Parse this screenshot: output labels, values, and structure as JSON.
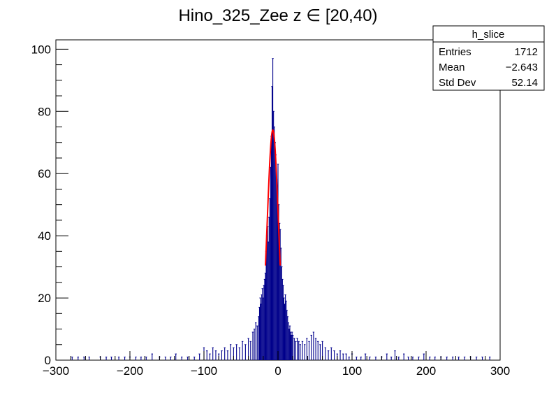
{
  "chart_data": {
    "type": "bar",
    "title": "Hino_325_Zee z  ∈ [20,40)",
    "xlabel": "",
    "ylabel": "",
    "xlim": [
      -300,
      300
    ],
    "ylim": [
      0,
      103
    ],
    "x_ticks": [
      "−300",
      "−200",
      "−100",
      "0",
      "100",
      "200",
      "300"
    ],
    "y_ticks": [
      "0",
      "20",
      "40",
      "60",
      "80",
      "100"
    ],
    "grid": false,
    "histogram_color": "#00008b",
    "fit_color": "#ff0000",
    "stats_box": {
      "name": "h_slice",
      "placement": "top-right",
      "rows": [
        {
          "label": "Entries",
          "value": "1712"
        },
        {
          "label": "Mean",
          "value": "−2.643"
        },
        {
          "label": "Std Dev",
          "value": "52.14"
        }
      ]
    },
    "fit": {
      "type": "gaussian",
      "constant": 74,
      "mean": -7,
      "sigma": 7.5,
      "range": [
        -17,
        3
      ]
    },
    "series": [
      {
        "values": [
          [
            -278,
            1
          ],
          [
            -270,
            1
          ],
          [
            -262,
            1
          ],
          [
            -255,
            1
          ],
          [
            -240,
            1
          ],
          [
            -232,
            1
          ],
          [
            -225,
            1
          ],
          [
            -215,
            1
          ],
          [
            -207,
            1
          ],
          [
            -200,
            1
          ],
          [
            -192,
            1
          ],
          [
            -185,
            1
          ],
          [
            -178,
            1
          ],
          [
            -170,
            2
          ],
          [
            -160,
            1
          ],
          [
            -152,
            1
          ],
          [
            -145,
            1
          ],
          [
            -138,
            2
          ],
          [
            -130,
            1
          ],
          [
            -122,
            1
          ],
          [
            -113,
            1
          ],
          [
            -106,
            2
          ],
          [
            -100,
            4
          ],
          [
            -96,
            3
          ],
          [
            -92,
            2
          ],
          [
            -88,
            4
          ],
          [
            -84,
            3
          ],
          [
            -80,
            2
          ],
          [
            -76,
            3
          ],
          [
            -72,
            4
          ],
          [
            -68,
            3
          ],
          [
            -64,
            5
          ],
          [
            -60,
            4
          ],
          [
            -56,
            5
          ],
          [
            -52,
            4
          ],
          [
            -48,
            6
          ],
          [
            -44,
            5
          ],
          [
            -40,
            7
          ],
          [
            -37,
            6
          ],
          [
            -34,
            9
          ],
          [
            -32,
            10
          ],
          [
            -30,
            12
          ],
          [
            -28,
            11
          ],
          [
            -26,
            14
          ],
          [
            -25,
            17
          ],
          [
            -24,
            20
          ],
          [
            -23,
            18
          ],
          [
            -22,
            21
          ],
          [
            -21,
            23
          ],
          [
            -20,
            20
          ],
          [
            -19,
            24
          ],
          [
            -18,
            26
          ],
          [
            -17,
            28
          ],
          [
            -16,
            35
          ],
          [
            -15,
            40
          ],
          [
            -14,
            43
          ],
          [
            -13,
            38
          ],
          [
            -12,
            46
          ],
          [
            -11,
            52
          ],
          [
            -10,
            62
          ],
          [
            -9,
            72
          ],
          [
            -8,
            88
          ],
          [
            -7,
            97
          ],
          [
            -6,
            80
          ],
          [
            -5,
            75
          ],
          [
            -4,
            70
          ],
          [
            -3,
            66
          ],
          [
            -2,
            58
          ],
          [
            -1,
            55
          ],
          [
            0,
            63
          ],
          [
            1,
            50
          ],
          [
            2,
            44
          ],
          [
            3,
            42
          ],
          [
            4,
            36
          ],
          [
            5,
            30
          ],
          [
            6,
            26
          ],
          [
            7,
            24
          ],
          [
            8,
            20
          ],
          [
            9,
            18
          ],
          [
            10,
            21
          ],
          [
            11,
            19
          ],
          [
            12,
            16
          ],
          [
            13,
            14
          ],
          [
            14,
            12
          ],
          [
            15,
            10
          ],
          [
            16,
            11
          ],
          [
            17,
            9
          ],
          [
            18,
            8
          ],
          [
            19,
            9
          ],
          [
            20,
            8
          ],
          [
            22,
            7
          ],
          [
            24,
            6
          ],
          [
            26,
            7
          ],
          [
            28,
            6
          ],
          [
            30,
            5
          ],
          [
            33,
            6
          ],
          [
            36,
            5
          ],
          [
            39,
            7
          ],
          [
            42,
            6
          ],
          [
            45,
            8
          ],
          [
            48,
            9
          ],
          [
            51,
            7
          ],
          [
            54,
            6
          ],
          [
            57,
            5
          ],
          [
            60,
            6
          ],
          [
            64,
            4
          ],
          [
            68,
            3
          ],
          [
            72,
            4
          ],
          [
            76,
            3
          ],
          [
            80,
            2
          ],
          [
            84,
            3
          ],
          [
            88,
            2
          ],
          [
            92,
            2
          ],
          [
            96,
            1
          ],
          [
            100,
            2
          ],
          [
            106,
            1
          ],
          [
            112,
            1
          ],
          [
            118,
            2
          ],
          [
            124,
            1
          ],
          [
            132,
            1
          ],
          [
            140,
            1
          ],
          [
            147,
            2
          ],
          [
            153,
            1
          ],
          [
            158,
            3
          ],
          [
            163,
            1
          ],
          [
            170,
            2
          ],
          [
            176,
            1
          ],
          [
            182,
            1
          ],
          [
            190,
            1
          ],
          [
            197,
            2
          ],
          [
            205,
            1
          ],
          [
            212,
            1
          ],
          [
            220,
            1
          ],
          [
            228,
            1
          ],
          [
            236,
            1
          ],
          [
            244,
            1
          ],
          [
            252,
            1
          ],
          [
            260,
            1
          ],
          [
            268,
            1
          ],
          [
            276,
            1
          ],
          [
            286,
            1
          ]
        ]
      }
    ]
  }
}
